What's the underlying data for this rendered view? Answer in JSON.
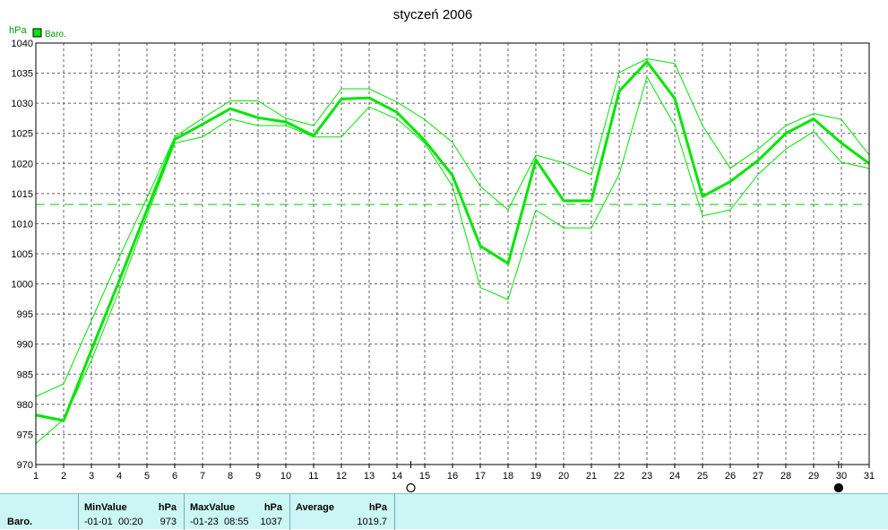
{
  "chart_data": {
    "type": "line",
    "title": "styczeń 2006",
    "ylabel": "hPa",
    "ylim": [
      970,
      1040
    ],
    "yticks": [
      970,
      975,
      980,
      985,
      990,
      995,
      1000,
      1005,
      1010,
      1015,
      1020,
      1025,
      1030,
      1035,
      1040
    ],
    "x": [
      1,
      2,
      3,
      4,
      5,
      6,
      7,
      8,
      9,
      10,
      11,
      12,
      13,
      14,
      15,
      16,
      17,
      18,
      19,
      20,
      21,
      22,
      23,
      24,
      25,
      26,
      27,
      28,
      29,
      30,
      31
    ],
    "grid": true,
    "legend": {
      "placement": "top-left",
      "entries": [
        "Baro."
      ]
    },
    "series": [
      {
        "name": "Baro.",
        "role": "mean",
        "values": [
          978.2,
          977.3,
          989.0,
          1000.5,
          1012.3,
          1024.0,
          1026.5,
          1029.1,
          1027.6,
          1026.9,
          1024.6,
          1030.7,
          1030.9,
          1028.5,
          1023.8,
          1018.0,
          1006.3,
          1003.4,
          1020.6,
          1013.8,
          1013.8,
          1032.0,
          1036.9,
          1030.8,
          1014.5,
          1017.0,
          1020.5,
          1025.0,
          1027.4,
          1023.4,
          1020.0
        ]
      },
      {
        "role": "max",
        "values": [
          981.3,
          983.4,
          993.9,
          1004.4,
          1014.3,
          1024.4,
          1027.5,
          1030.4,
          1030.4,
          1027.5,
          1026.3,
          1032.4,
          1032.4,
          1030.2,
          1027.3,
          1023.5,
          1016.2,
          1012.3,
          1021.4,
          1020.1,
          1018.1,
          1035.1,
          1037.4,
          1036.6,
          1026.3,
          1019.2,
          1022.4,
          1026.3,
          1028.3,
          1027.3,
          1021.4
        ]
      },
      {
        "role": "min",
        "values": [
          973.5,
          977.5,
          987.3,
          998.9,
          1011.3,
          1023.4,
          1024.4,
          1027.4,
          1026.3,
          1026.3,
          1024.4,
          1024.4,
          1029.4,
          1027.4,
          1023.4,
          1016.2,
          999.4,
          997.4,
          1012.3,
          1009.3,
          1009.3,
          1018.2,
          1034.4,
          1026.3,
          1011.3,
          1012.3,
          1018.2,
          1022.4,
          1025.3,
          1020.2,
          1019.2
        ]
      }
    ],
    "average_line": 1013.2,
    "moon_phases": [
      {
        "x": 14.5,
        "phase": "full"
      },
      {
        "x": 29.9,
        "phase": "new"
      }
    ],
    "colors": {
      "line": "#00e600",
      "grid": "#606060",
      "average": "#00c800"
    }
  },
  "stats": {
    "series_label": "Baro.",
    "min": {
      "header": "MinValue",
      "unit": "hPa",
      "date": "-01-01",
      "time": "00:20",
      "value": "973"
    },
    "max": {
      "header": "MaxValue",
      "unit": "hPa",
      "date": "-01-23",
      "time": "08:55",
      "value": "1037"
    },
    "avg": {
      "header": "Average",
      "unit": "hPa",
      "value": "1019.7"
    }
  }
}
